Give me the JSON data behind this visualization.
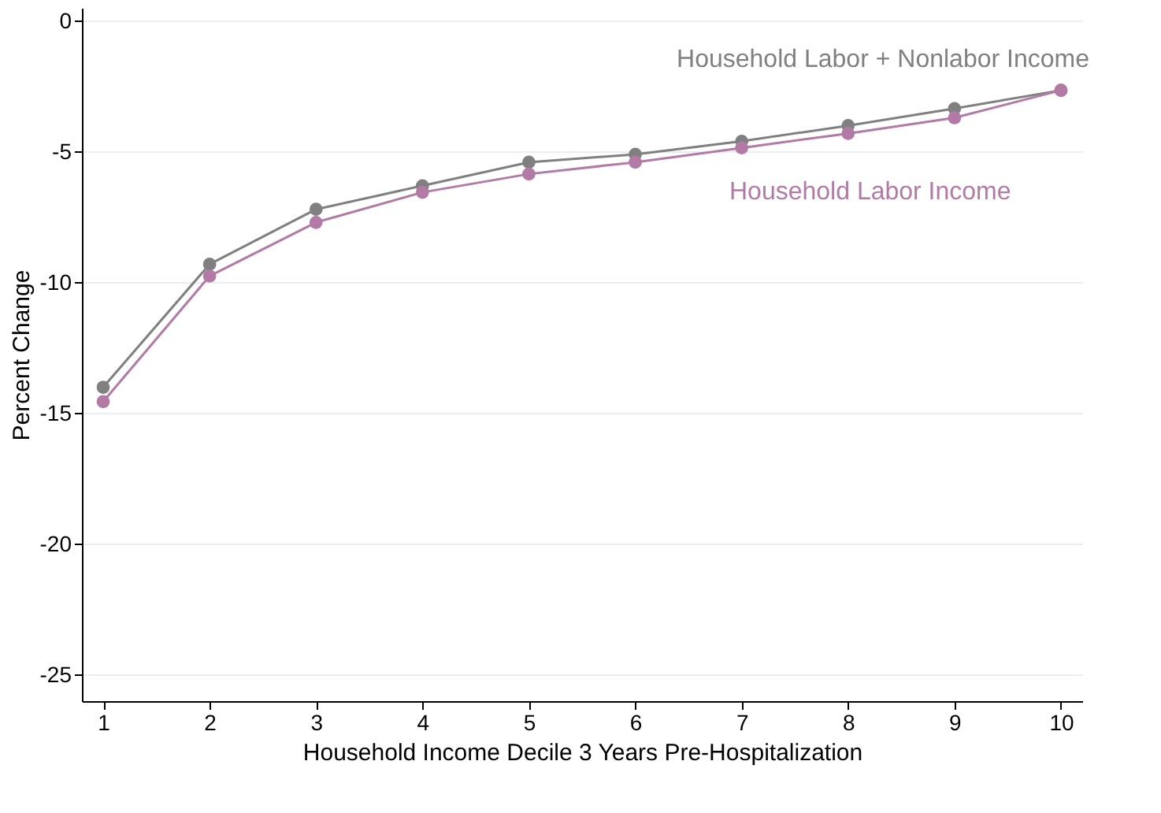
{
  "chart_data": {
    "type": "line",
    "xlabel": "Household Income Decile 3 Years Pre-Hospitalization",
    "ylabel": "Percent Change",
    "x": [
      1,
      2,
      3,
      4,
      5,
      6,
      7,
      8,
      9,
      10
    ],
    "series": [
      {
        "name": "Household Labor + Nonlabor Income",
        "color": "#808080",
        "values": [
          -14.0,
          -9.3,
          -7.2,
          -6.3,
          -5.4,
          -5.1,
          -4.6,
          -4.0,
          -3.35,
          -2.65
        ]
      },
      {
        "name": "Household Labor Income",
        "color": "#b27aa5",
        "values": [
          -14.55,
          -9.75,
          -7.7,
          -6.55,
          -5.85,
          -5.4,
          -4.85,
          -4.3,
          -3.7,
          -2.65
        ]
      }
    ],
    "xlim": [
      0.8,
      10.2
    ],
    "xticks": [
      1,
      2,
      3,
      4,
      5,
      6,
      7,
      8,
      9,
      10
    ],
    "ylim": [
      -26,
      0.5
    ],
    "yticks": [
      -25,
      -20,
      -15,
      -10,
      -5,
      0
    ],
    "grid": "y",
    "marker": "circle",
    "line_style": "solid",
    "legend": false
  }
}
